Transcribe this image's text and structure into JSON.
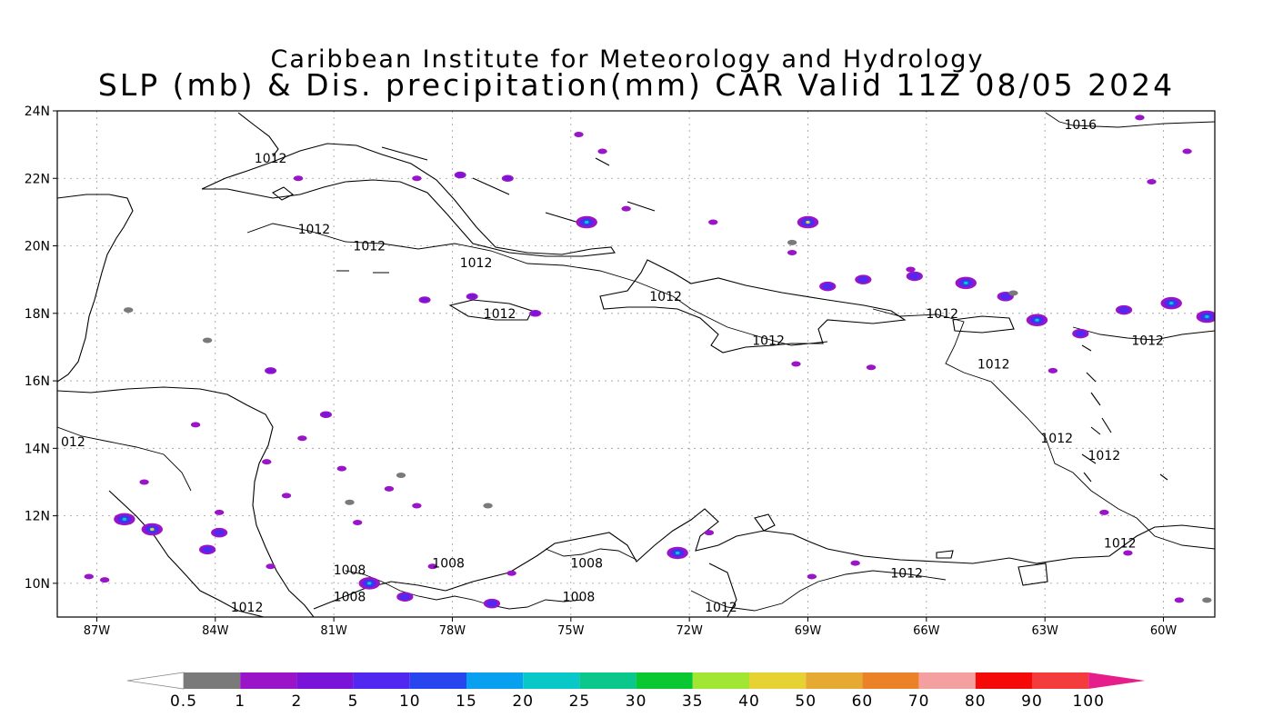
{
  "title": {
    "line1": "Caribbean Institute for Meteorology and Hydrology",
    "line2": "SLP (mb) & Dis. precipitation(mm) CAR Valid 11Z 08/05 2024"
  },
  "map": {
    "lon_range": [
      -88.0,
      -58.7
    ],
    "lat_range": [
      9.0,
      24.0
    ],
    "grid": "dotted",
    "x_ticks": [
      "87W",
      "84W",
      "81W",
      "78W",
      "75W",
      "72W",
      "69W",
      "66W",
      "63W",
      "60W"
    ],
    "x_tick_lons": [
      -87,
      -84,
      -81,
      -78,
      -75,
      -72,
      -69,
      -66,
      -63,
      -60
    ],
    "y_ticks": [
      "24N",
      "22N",
      "20N",
      "18N",
      "16N",
      "14N",
      "12N",
      "10N"
    ],
    "y_tick_lats": [
      24,
      22,
      20,
      18,
      16,
      14,
      12,
      10
    ],
    "isobar_labels": [
      {
        "text": "1016",
        "lon": -62.1,
        "lat": 23.6
      },
      {
        "text": "1012",
        "lon": -82.6,
        "lat": 22.6
      },
      {
        "text": "1012",
        "lon": -81.5,
        "lat": 20.5
      },
      {
        "text": "1012",
        "lon": -80.1,
        "lat": 20.0
      },
      {
        "text": "1012",
        "lon": -77.4,
        "lat": 19.5
      },
      {
        "text": "1012",
        "lon": -76.8,
        "lat": 18.0
      },
      {
        "text": "1012",
        "lon": -72.6,
        "lat": 18.5
      },
      {
        "text": "1012",
        "lon": -70.0,
        "lat": 17.2
      },
      {
        "text": "1012",
        "lon": -65.6,
        "lat": 18.0
      },
      {
        "text": "1012",
        "lon": -64.3,
        "lat": 16.5
      },
      {
        "text": "1012",
        "lon": -60.4,
        "lat": 17.2
      },
      {
        "text": "1012",
        "lon": -62.7,
        "lat": 14.3
      },
      {
        "text": "1012",
        "lon": -61.5,
        "lat": 13.8
      },
      {
        "text": "1012",
        "lon": -61.1,
        "lat": 11.2
      },
      {
        "text": "012",
        "lon": -87.6,
        "lat": 14.2
      },
      {
        "text": "1012",
        "lon": -66.5,
        "lat": 10.3
      },
      {
        "text": "1012",
        "lon": -71.2,
        "lat": 9.3
      },
      {
        "text": "1012",
        "lon": -83.2,
        "lat": 9.3
      },
      {
        "text": "1008",
        "lon": -80.6,
        "lat": 10.4
      },
      {
        "text": "1008",
        "lon": -78.1,
        "lat": 10.6
      },
      {
        "text": "1008",
        "lon": -74.6,
        "lat": 10.6
      },
      {
        "text": "1008",
        "lon": -80.6,
        "lat": 9.6
      },
      {
        "text": "1008",
        "lon": -74.8,
        "lat": 9.6
      }
    ],
    "precip_cells": [
      {
        "lon": -69.0,
        "lat": 20.7,
        "mm": 15
      },
      {
        "lon": -74.6,
        "lat": 20.7,
        "mm": 10
      },
      {
        "lon": -63.2,
        "lat": 17.8,
        "mm": 10
      },
      {
        "lon": -64.0,
        "lat": 18.5,
        "mm": 5
      },
      {
        "lon": -61.0,
        "lat": 18.1,
        "mm": 5
      },
      {
        "lon": -59.8,
        "lat": 18.3,
        "mm": 10
      },
      {
        "lon": -58.9,
        "lat": 17.9,
        "mm": 10
      },
      {
        "lon": -67.6,
        "lat": 19.0,
        "mm": 5
      },
      {
        "lon": -66.3,
        "lat": 19.1,
        "mm": 5
      },
      {
        "lon": -65.0,
        "lat": 18.9,
        "mm": 10
      },
      {
        "lon": -68.5,
        "lat": 18.8,
        "mm": 5
      },
      {
        "lon": -62.1,
        "lat": 17.4,
        "mm": 5
      },
      {
        "lon": -85.6,
        "lat": 11.6,
        "mm": 15
      },
      {
        "lon": -86.3,
        "lat": 11.9,
        "mm": 10
      },
      {
        "lon": -80.1,
        "lat": 10.0,
        "mm": 10
      },
      {
        "lon": -79.2,
        "lat": 9.6,
        "mm": 5
      },
      {
        "lon": -72.3,
        "lat": 10.9,
        "mm": 10
      },
      {
        "lon": -77.0,
        "lat": 9.4,
        "mm": 5
      },
      {
        "lon": -83.9,
        "lat": 11.5,
        "mm": 5
      },
      {
        "lon": -84.2,
        "lat": 11.0,
        "mm": 5
      },
      {
        "lon": -77.5,
        "lat": 18.5,
        "mm": 2
      },
      {
        "lon": -82.6,
        "lat": 16.3,
        "mm": 2
      },
      {
        "lon": -78.7,
        "lat": 18.4,
        "mm": 2
      },
      {
        "lon": -75.9,
        "lat": 18.0,
        "mm": 2
      },
      {
        "lon": -76.6,
        "lat": 22.0,
        "mm": 2
      },
      {
        "lon": -77.8,
        "lat": 22.1,
        "mm": 2
      },
      {
        "lon": -81.2,
        "lat": 15.0,
        "mm": 2
      },
      {
        "lon": -81.8,
        "lat": 14.3,
        "mm": 1
      },
      {
        "lon": -82.7,
        "lat": 13.6,
        "mm": 1
      },
      {
        "lon": -80.8,
        "lat": 13.4,
        "mm": 1
      },
      {
        "lon": -79.6,
        "lat": 12.8,
        "mm": 1
      },
      {
        "lon": -78.9,
        "lat": 12.3,
        "mm": 1
      },
      {
        "lon": -82.2,
        "lat": 12.6,
        "mm": 1
      },
      {
        "lon": -83.9,
        "lat": 12.1,
        "mm": 1
      },
      {
        "lon": -80.4,
        "lat": 11.8,
        "mm": 1
      },
      {
        "lon": -74.2,
        "lat": 22.8,
        "mm": 1
      },
      {
        "lon": -74.8,
        "lat": 23.3,
        "mm": 1
      },
      {
        "lon": -66.4,
        "lat": 19.3,
        "mm": 1
      },
      {
        "lon": -69.4,
        "lat": 19.8,
        "mm": 1
      },
      {
        "lon": -71.4,
        "lat": 20.7,
        "mm": 1
      },
      {
        "lon": -67.4,
        "lat": 16.4,
        "mm": 1
      },
      {
        "lon": -69.3,
        "lat": 16.5,
        "mm": 1
      },
      {
        "lon": -62.8,
        "lat": 16.3,
        "mm": 1
      },
      {
        "lon": -60.6,
        "lat": 23.8,
        "mm": 1
      },
      {
        "lon": -59.4,
        "lat": 22.8,
        "mm": 1
      },
      {
        "lon": -60.3,
        "lat": 21.9,
        "mm": 1
      },
      {
        "lon": -61.5,
        "lat": 12.1,
        "mm": 1
      },
      {
        "lon": -60.9,
        "lat": 10.9,
        "mm": 1
      },
      {
        "lon": -59.6,
        "lat": 9.5,
        "mm": 1
      },
      {
        "lon": -68.9,
        "lat": 10.2,
        "mm": 1
      },
      {
        "lon": -67.8,
        "lat": 10.6,
        "mm": 1
      },
      {
        "lon": -71.5,
        "lat": 11.5,
        "mm": 1
      },
      {
        "lon": -84.5,
        "lat": 14.7,
        "mm": 1
      },
      {
        "lon": -85.8,
        "lat": 13.0,
        "mm": 1
      },
      {
        "lon": -86.8,
        "lat": 10.1,
        "mm": 1
      },
      {
        "lon": -87.2,
        "lat": 10.2,
        "mm": 1
      },
      {
        "lon": -82.6,
        "lat": 10.5,
        "mm": 1
      },
      {
        "lon": -78.5,
        "lat": 10.5,
        "mm": 1
      },
      {
        "lon": -76.5,
        "lat": 10.3,
        "mm": 1
      },
      {
        "lon": -78.9,
        "lat": 22.0,
        "mm": 1
      },
      {
        "lon": -81.9,
        "lat": 22.0,
        "mm": 1
      },
      {
        "lon": -73.6,
        "lat": 21.1,
        "mm": 1
      },
      {
        "lon": -84.2,
        "lat": 17.2,
        "mm": 0.5
      },
      {
        "lon": -86.2,
        "lat": 18.1,
        "mm": 0.5
      },
      {
        "lon": -69.4,
        "lat": 20.1,
        "mm": 0.5
      },
      {
        "lon": -63.8,
        "lat": 18.6,
        "mm": 0.5
      },
      {
        "lon": -58.9,
        "lat": 9.5,
        "mm": 0.5
      },
      {
        "lon": -77.1,
        "lat": 12.3,
        "mm": 0.5
      },
      {
        "lon": -79.3,
        "lat": 13.2,
        "mm": 0.5
      },
      {
        "lon": -80.6,
        "lat": 12.4,
        "mm": 0.5
      }
    ]
  },
  "colorbar": {
    "labels": [
      "0.5",
      "1",
      "2",
      "5",
      "10",
      "15",
      "20",
      "25",
      "30",
      "35",
      "40",
      "50",
      "60",
      "70",
      "80",
      "90",
      "100"
    ],
    "colors": [
      "#7a7a7a",
      "#9a14c8",
      "#7a14d8",
      "#5028f0",
      "#2846f0",
      "#0aa0f0",
      "#0ac8c8",
      "#0ac88c",
      "#0ac832",
      "#a0e632",
      "#e6d232",
      "#e6aa32",
      "#ec8228",
      "#f5a0a0",
      "#f50a0a",
      "#f53c3c"
    ],
    "low_arrow_color": "#ffffff",
    "high_arrow_color": "#e61e8c"
  }
}
